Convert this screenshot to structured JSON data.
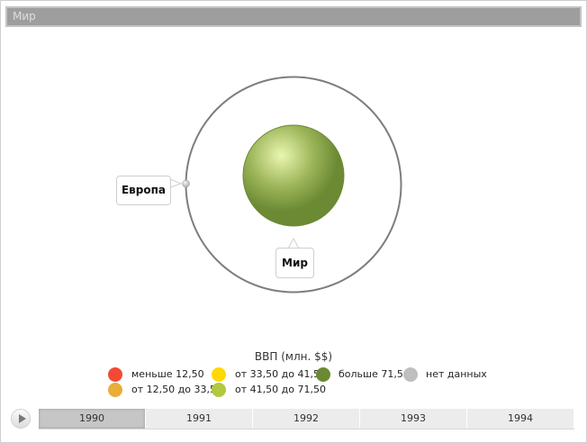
{
  "title": "Мир",
  "nodes": {
    "center": {
      "label": "Мир",
      "color": "#6b8a33"
    },
    "child": {
      "label": "Европа",
      "color": "#c0c0c0"
    }
  },
  "legend": {
    "title": "ВВП (млн. $$)",
    "items": [
      {
        "label": "меньше 12,50",
        "color": "#f24a35"
      },
      {
        "label": "от 12,50 до 33,50",
        "color": "#e9ad38"
      },
      {
        "label": "от 33,50 до 41,50",
        "color": "#ffd900"
      },
      {
        "label": "от 41,50 до 71,50",
        "color": "#b2c83f"
      },
      {
        "label": "больше 71,50",
        "color": "#6b8a33"
      },
      {
        "label": "нет данных",
        "color": "#bfbfbf"
      }
    ]
  },
  "timeline": {
    "play_icon": "play-icon",
    "years": [
      "1990",
      "1991",
      "1992",
      "1993",
      "1994"
    ],
    "selected": "1990"
  }
}
